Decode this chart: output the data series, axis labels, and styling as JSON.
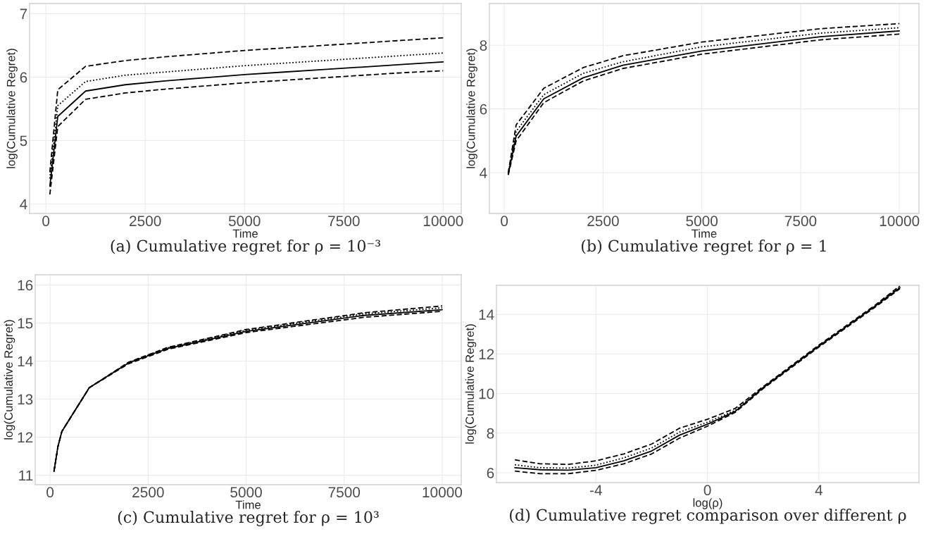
{
  "chart_data": [
    {
      "type": "line",
      "title": "(a) Cumulative regret for ρ = 10⁻³",
      "xlabel": "Time",
      "ylabel": "log(Cumulative Regret)",
      "x": [
        100,
        300,
        1000,
        2000,
        3000,
        4000,
        5000,
        6000,
        7000,
        8000,
        9000,
        10000
      ],
      "xlim": [
        -410,
        10455
      ],
      "xticks": [
        0,
        2500,
        5000,
        7500,
        10000
      ],
      "ylim": [
        3.85,
        7.16
      ],
      "yticks": [
        4,
        5,
        6,
        7
      ],
      "grid": true,
      "series": [
        {
          "color": "#000000",
          "line_style": "dashed",
          "values": [
            4.5,
            5.8,
            6.17,
            6.26,
            6.32,
            6.37,
            6.42,
            6.46,
            6.5,
            6.54,
            6.58,
            6.62
          ]
        },
        {
          "color": "#000000",
          "line_style": "dotted",
          "values": [
            4.4,
            5.55,
            5.93,
            6.03,
            6.08,
            6.13,
            6.18,
            6.22,
            6.26,
            6.3,
            6.34,
            6.38
          ]
        },
        {
          "color": "#000000",
          "line_style": "solid",
          "values": [
            4.28,
            5.38,
            5.78,
            5.88,
            5.94,
            5.99,
            6.04,
            6.08,
            6.12,
            6.16,
            6.2,
            6.24
          ]
        },
        {
          "color": "#000000",
          "line_style": "dashed",
          "values": [
            4.15,
            5.22,
            5.65,
            5.75,
            5.81,
            5.86,
            5.91,
            5.95,
            5.99,
            6.03,
            6.07,
            6.1
          ]
        }
      ]
    },
    {
      "type": "line",
      "title": "(b) Cumulative regret for ρ = 1",
      "xlabel": "Time",
      "ylabel": "log(Cumulative Regret)",
      "x": [
        100,
        300,
        1000,
        2000,
        3000,
        5000,
        8000,
        10000
      ],
      "xlim": [
        -377,
        10496
      ],
      "xticks": [
        0,
        2500,
        5000,
        7500,
        10000
      ],
      "ylim": [
        2.72,
        9.31
      ],
      "yticks": [
        4,
        6,
        8
      ],
      "grid": true,
      "series": [
        {
          "color": "#000000",
          "line_style": "dashed",
          "values": [
            4.0,
            5.5,
            6.65,
            7.3,
            7.67,
            8.1,
            8.52,
            8.68
          ]
        },
        {
          "color": "#000000",
          "line_style": "dotted",
          "values": [
            3.98,
            5.3,
            6.45,
            7.12,
            7.48,
            7.95,
            8.38,
            8.55
          ]
        },
        {
          "color": "#000000",
          "line_style": "solid",
          "values": [
            3.95,
            5.15,
            6.32,
            6.98,
            7.37,
            7.82,
            8.27,
            8.45
          ]
        },
        {
          "color": "#000000",
          "line_style": "dashed",
          "values": [
            3.93,
            5.0,
            6.2,
            6.88,
            7.27,
            7.72,
            8.17,
            8.35
          ]
        }
      ]
    },
    {
      "type": "line",
      "title": "(c) Cumulative regret for ρ = 10³",
      "xlabel": "Time",
      "ylabel": "log(Cumulative Regret)",
      "x": [
        100,
        200,
        300,
        1000,
        2000,
        3000,
        5000,
        8000,
        10000
      ],
      "xlim": [
        -379,
        10486
      ],
      "xticks": [
        0,
        2500,
        5000,
        7500,
        10000
      ],
      "ylim": [
        10.75,
        16.27
      ],
      "yticks": [
        11,
        12,
        13,
        14,
        15,
        16
      ],
      "grid": true,
      "series": [
        {
          "color": "#000000",
          "line_style": "dashed",
          "values": [
            11.1,
            11.75,
            12.15,
            13.3,
            13.97,
            14.36,
            14.83,
            15.27,
            15.45
          ]
        },
        {
          "color": "#000000",
          "line_style": "dotted",
          "values": [
            11.1,
            11.75,
            12.15,
            13.3,
            13.96,
            14.35,
            14.81,
            15.24,
            15.4
          ]
        },
        {
          "color": "#000000",
          "line_style": "solid",
          "values": [
            11.1,
            11.75,
            12.15,
            13.3,
            13.95,
            14.33,
            14.78,
            15.2,
            15.35
          ]
        },
        {
          "color": "#000000",
          "line_style": "dashed",
          "values": [
            11.1,
            11.75,
            12.15,
            13.3,
            13.93,
            14.31,
            14.75,
            15.15,
            15.31
          ]
        }
      ]
    },
    {
      "type": "line",
      "title": "(d) Cumulative regret comparison over different ρ",
      "xlabel": "log(ρ)",
      "ylabel": "log(Cumulative Regret)",
      "x": [
        -6.91,
        -6,
        -5,
        -4,
        -3,
        -2,
        -1,
        0,
        1,
        2,
        3,
        4,
        5,
        6,
        6.91
      ],
      "xlim": [
        -7.57,
        7.59
      ],
      "xticks": [
        -4,
        0,
        4
      ],
      "ylim": [
        5.5,
        15.47
      ],
      "yticks": [
        6,
        8,
        10,
        12,
        14
      ],
      "grid": true,
      "series": [
        {
          "color": "#000000",
          "line_style": "dashed",
          "values": [
            6.65,
            6.45,
            6.42,
            6.6,
            6.95,
            7.45,
            8.25,
            8.7,
            9.25,
            10.35,
            11.4,
            12.45,
            13.45,
            14.45,
            15.45
          ]
        },
        {
          "color": "#000000",
          "line_style": "dotted",
          "values": [
            6.4,
            6.25,
            6.23,
            6.38,
            6.75,
            7.25,
            8.05,
            8.55,
            9.15,
            10.3,
            11.35,
            12.4,
            13.4,
            14.4,
            15.4
          ]
        },
        {
          "color": "#000000",
          "line_style": "solid",
          "values": [
            6.25,
            6.15,
            6.13,
            6.25,
            6.6,
            7.1,
            7.9,
            8.45,
            9.1,
            10.3,
            11.35,
            12.4,
            13.4,
            14.4,
            15.35
          ]
        },
        {
          "color": "#000000",
          "line_style": "dashed",
          "values": [
            6.08,
            5.95,
            5.95,
            6.12,
            6.45,
            6.95,
            7.75,
            8.35,
            9.05,
            10.25,
            11.3,
            12.35,
            13.35,
            14.35,
            15.3
          ]
        }
      ]
    }
  ]
}
